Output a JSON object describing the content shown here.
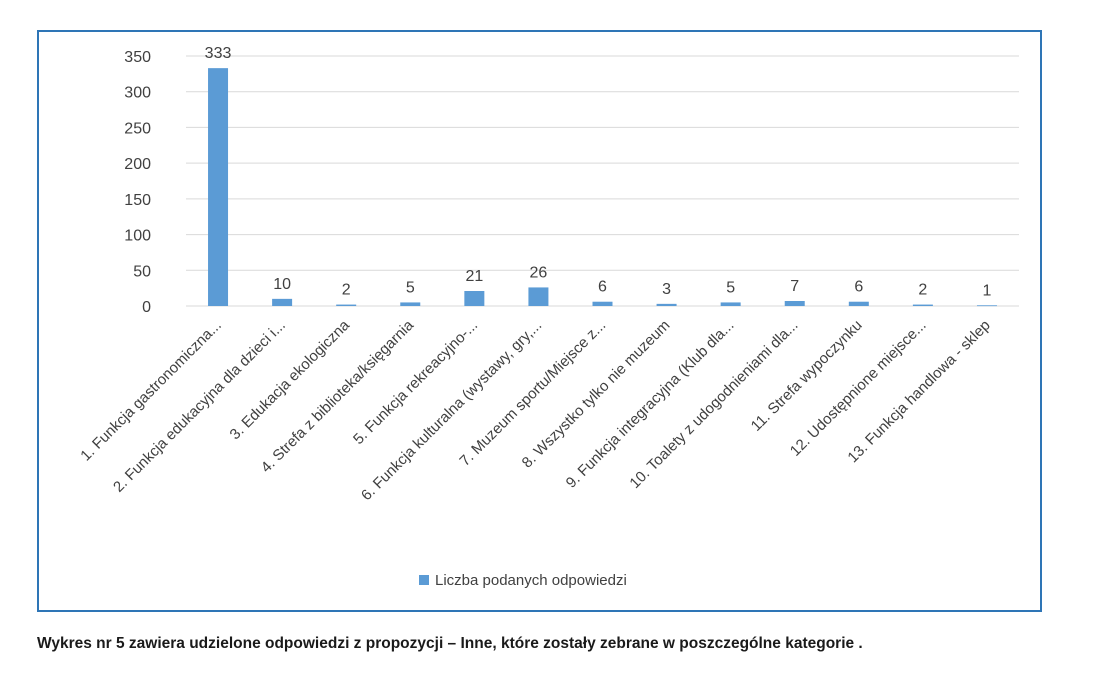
{
  "caption": "Wykres nr 5 zawiera udzielone odpowiedzi z propozycji – Inne, które zostały zebrane w poszczególne kategorie .",
  "colors": {
    "bar": "#5b9bd5",
    "border": "#2e75b6",
    "grid": "#d9d9d9",
    "text": "#404040"
  },
  "chart_data": {
    "type": "bar",
    "categories": [
      "1. Funkcja gastronomiczna...",
      "2. Funkcja edukacyjna dla dzieci i...",
      "3. Edukacja ekologiczna",
      "4. Strefa z biblioteka/księgarnia",
      "5. Funkcja rekreacyjno-...",
      "6. Funkcja kulturalna (wystawy, gry,...",
      "7. Muzeum sportu/Miejsce z...",
      "8. Wszystko tylko nie muzeum",
      "9. Funkcja integracyjna (Klub dla...",
      "10. Toalety z udogodnieniami dla...",
      "11. Strefa wypoczynku",
      "12. Udostępnione miejsce...",
      "13. Funkcja handlowa - sklep"
    ],
    "series": [
      {
        "name": "Liczba podanych odpowiedzi",
        "values": [
          333,
          10,
          2,
          5,
          21,
          26,
          6,
          3,
          5,
          7,
          6,
          2,
          1
        ]
      }
    ],
    "ylim": [
      0,
      350
    ],
    "yticks": [
      0,
      50,
      100,
      150,
      200,
      250,
      300,
      350
    ],
    "grid": true,
    "legend": "bottom"
  }
}
